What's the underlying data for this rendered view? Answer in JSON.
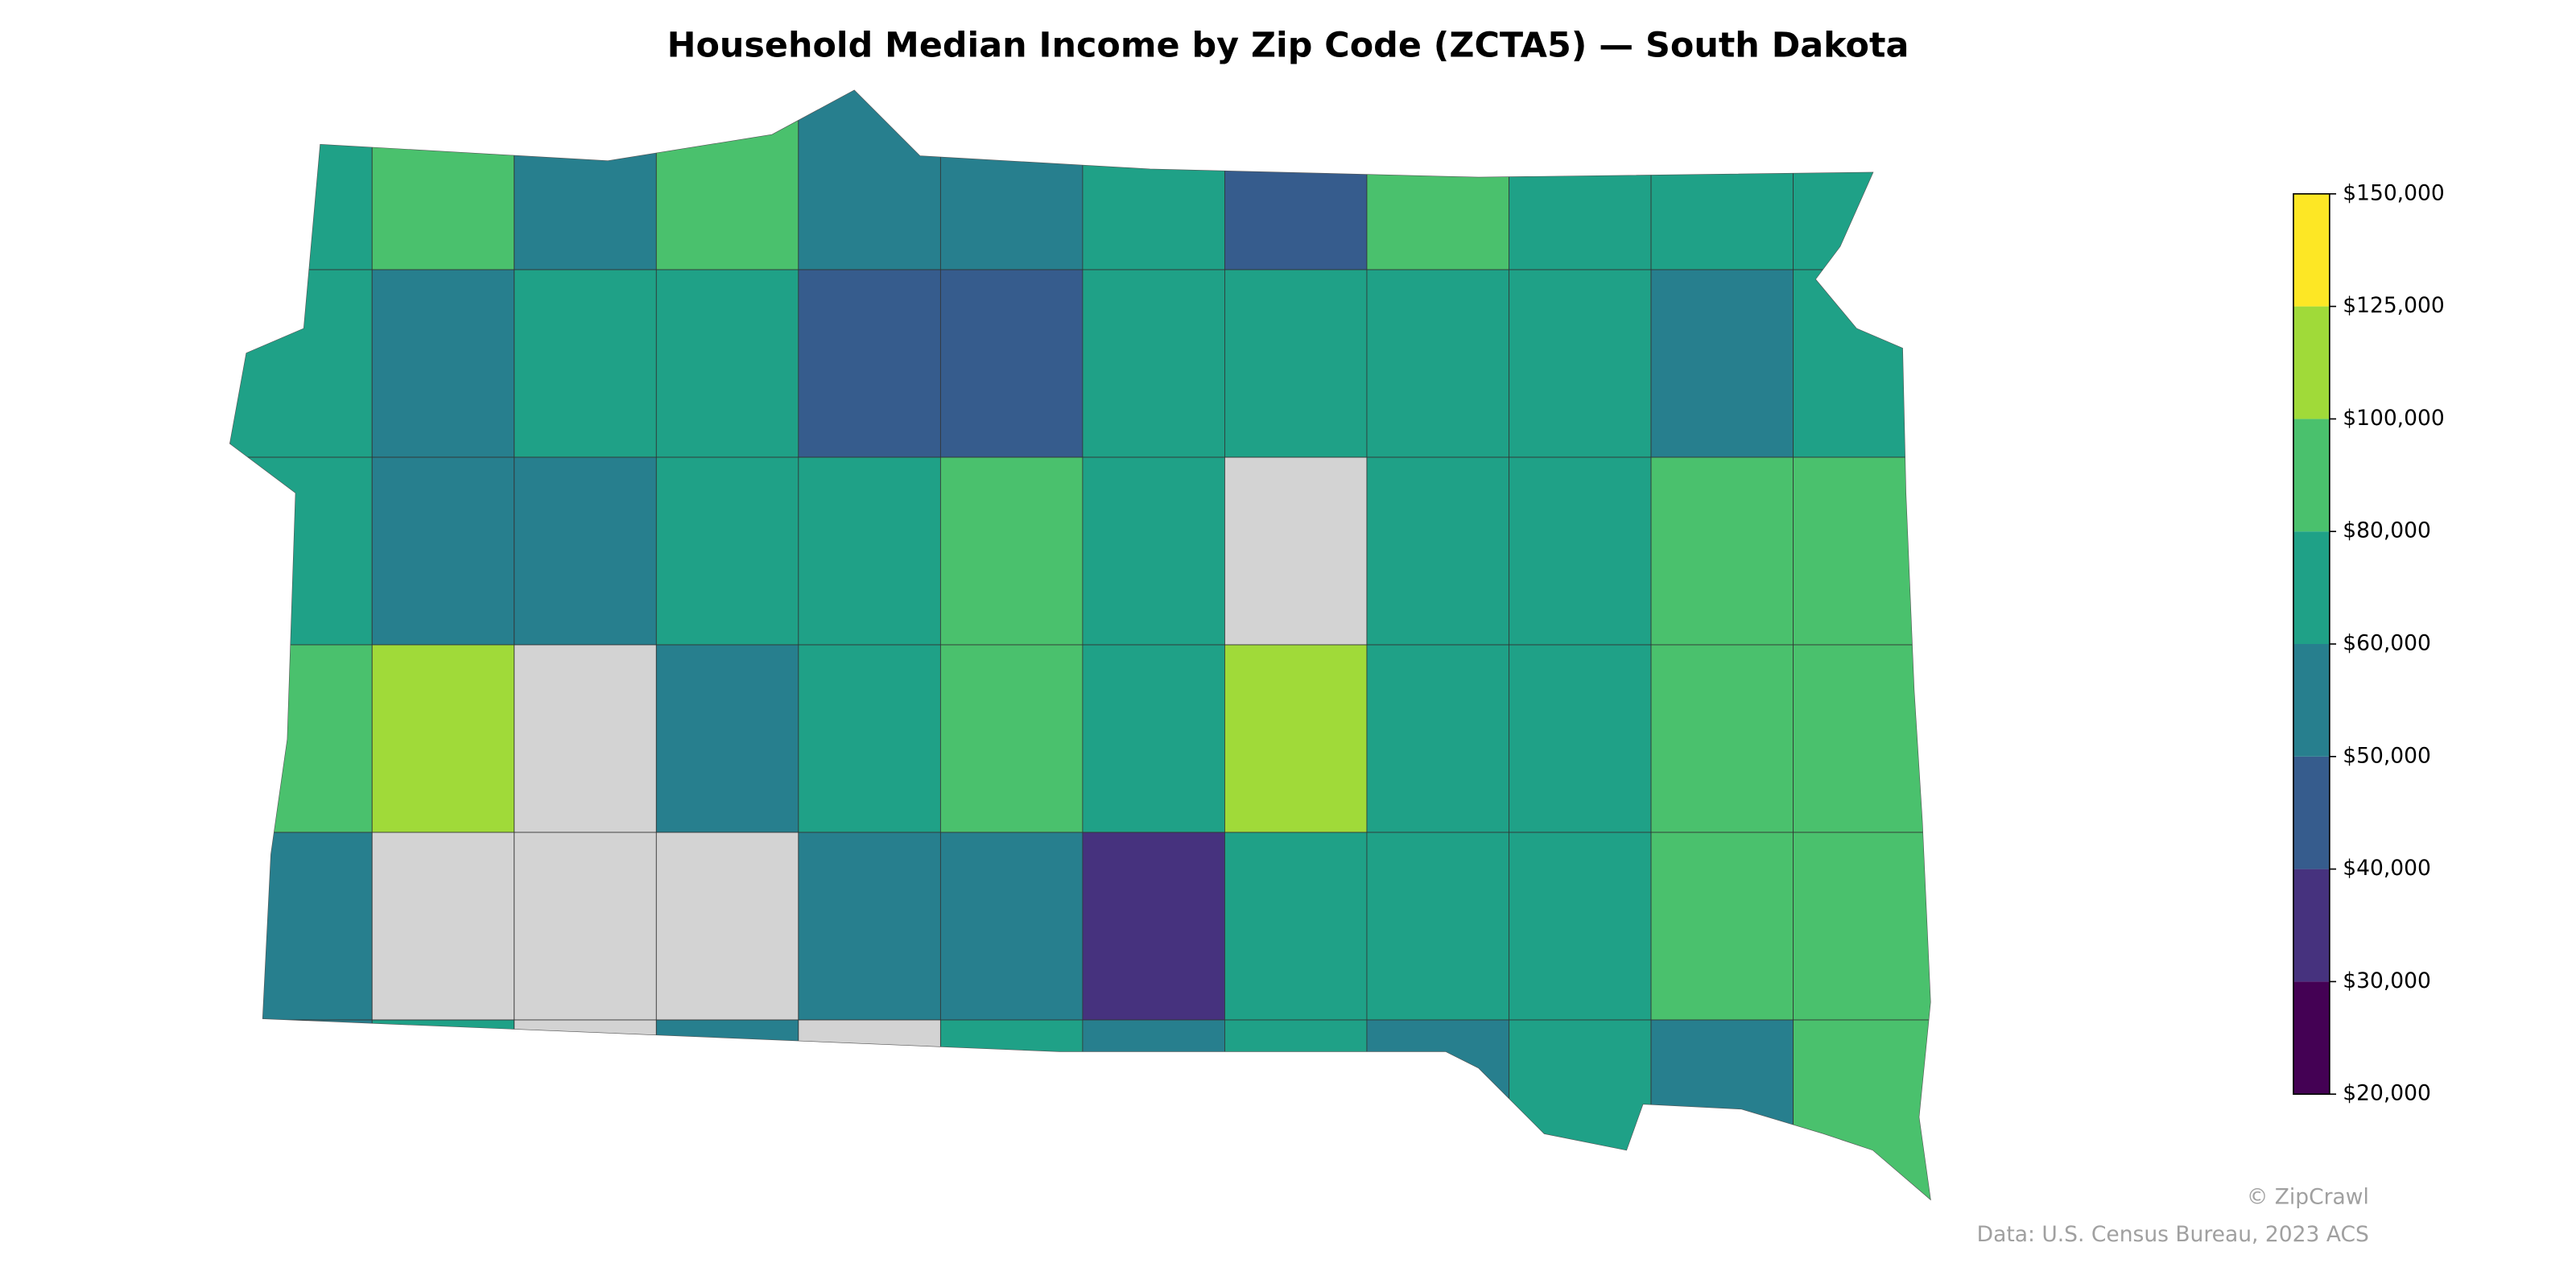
{
  "chart_data": {
    "type": "choropleth",
    "title": "Household Median Income by Zip Code (ZCTA5) — South Dakota",
    "values": [
      [
        70000,
        90000,
        55000,
        90000,
        55000,
        55000,
        70000,
        45000,
        90000,
        70000,
        70000,
        70000
      ],
      [
        70000,
        55000,
        70000,
        70000,
        45000,
        45000,
        70000,
        70000,
        70000,
        70000,
        55000,
        70000
      ],
      [
        70000,
        55000,
        55000,
        70000,
        70000,
        90000,
        70000,
        null,
        70000,
        70000,
        90000,
        90000
      ],
      [
        90000,
        110000,
        null,
        55000,
        70000,
        90000,
        70000,
        110000,
        70000,
        70000,
        90000,
        90000
      ],
      [
        55000,
        null,
        null,
        null,
        55000,
        55000,
        35000,
        70000,
        70000,
        70000,
        90000,
        90000
      ],
      [
        55000,
        70000,
        null,
        55000,
        null,
        70000,
        55000,
        70000,
        55000,
        70000,
        55000,
        90000
      ]
    ],
    "colorbar": {
      "colors": [
        "#440154",
        "#46327e",
        "#365c8d",
        "#277f8e",
        "#1fa187",
        "#4ac16d",
        "#a0da39",
        "#fde725"
      ],
      "lim": [
        20000,
        150000
      ],
      "ticks": [
        {
          "value": 20000,
          "label": "$20,000"
        },
        {
          "value": 30000,
          "label": "$30,000"
        },
        {
          "value": 40000,
          "label": "$40,000"
        },
        {
          "value": 50000,
          "label": "$50,000"
        },
        {
          "value": 60000,
          "label": "$60,000"
        },
        {
          "value": 80000,
          "label": "$80,000"
        },
        {
          "value": 100000,
          "label": "$100,000"
        },
        {
          "value": 125000,
          "label": "$125,000"
        },
        {
          "value": 150000,
          "label": "$150,000"
        }
      ]
    },
    "credit": "© ZipCrawl",
    "source": "Data: U.S. Census Bureau, 2023 ACS"
  }
}
